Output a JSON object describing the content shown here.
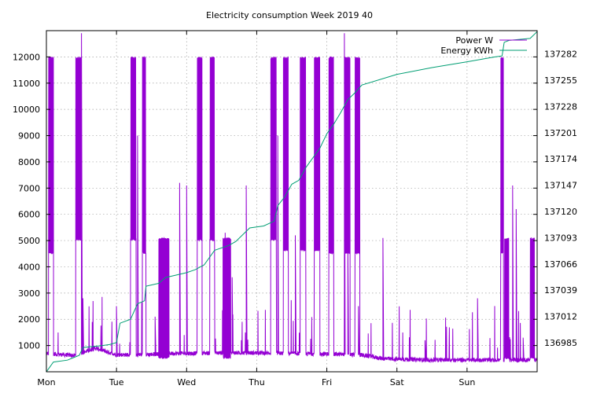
{
  "chart_data": {
    "type": "line",
    "title": "Electricity consumption Week 2019 40",
    "xlabel": "",
    "ylabel": "",
    "y2label": "",
    "x_ticks": [
      "Mon",
      "Tue",
      "Wed",
      "Thu",
      "Fri",
      "Sat",
      "Sun"
    ],
    "x_range_days": [
      0,
      7
    ],
    "ylim": [
      0,
      13000
    ],
    "y_ticks": [
      1000,
      2000,
      3000,
      4000,
      5000,
      6000,
      7000,
      8000,
      9000,
      10000,
      11000,
      12000
    ],
    "y2lim": [
      136955,
      137306
    ],
    "y2_ticks": [
      136985,
      137012,
      137039,
      137066,
      137093,
      137120,
      137147,
      137174,
      137201,
      137228,
      137255,
      137282
    ],
    "grid": true,
    "legend_position": "top-right",
    "colors": {
      "power": "#9400d3",
      "energy": "#009e73",
      "grid": "#a0a0a0"
    },
    "series": [
      {
        "name": "Power W",
        "axis": "y",
        "style": "spiky",
        "base_level": [
          [
            0.0,
            700
          ],
          [
            0.4,
            620
          ],
          [
            0.7,
            900
          ],
          [
            1.0,
            650
          ],
          [
            1.4,
            650
          ],
          [
            1.7,
            700
          ],
          [
            2.0,
            700
          ],
          [
            2.5,
            720
          ],
          [
            3.0,
            720
          ],
          [
            3.5,
            700
          ],
          [
            4.0,
            680
          ],
          [
            4.5,
            640
          ],
          [
            4.8,
            500
          ],
          [
            5.0,
            480
          ],
          [
            5.5,
            450
          ],
          [
            6.0,
            450
          ],
          [
            6.4,
            450
          ],
          [
            6.9,
            450
          ],
          [
            7.0,
            450
          ]
        ],
        "high_blocks": [
          [
            0.03,
            0.1,
            4500,
            12000
          ],
          [
            0.42,
            0.5,
            5000,
            12000
          ],
          [
            1.2,
            1.28,
            5000,
            12000
          ],
          [
            1.37,
            1.42,
            4500,
            12000
          ],
          [
            1.6,
            1.75,
            500,
            5100
          ],
          [
            2.15,
            2.22,
            5000,
            12000
          ],
          [
            2.33,
            2.4,
            5000,
            12000
          ],
          [
            2.52,
            2.63,
            500,
            5100
          ],
          [
            3.2,
            3.28,
            5000,
            12000
          ],
          [
            3.38,
            3.45,
            4600,
            12000
          ],
          [
            3.62,
            3.7,
            4600,
            12000
          ],
          [
            3.82,
            3.9,
            4600,
            12000
          ],
          [
            4.03,
            4.1,
            4500,
            12000
          ],
          [
            4.25,
            4.33,
            4500,
            12000
          ],
          [
            4.4,
            4.47,
            4500,
            12000
          ],
          [
            6.48,
            6.52,
            4500,
            12000
          ],
          [
            6.53,
            6.6,
            500,
            5100
          ],
          [
            6.9,
            6.96,
            500,
            5100
          ]
        ],
        "peaks": [
          [
            0.5,
            12900
          ],
          [
            4.25,
            12900
          ],
          [
            0.52,
            2800
          ],
          [
            1.0,
            2500
          ],
          [
            1.3,
            9000
          ],
          [
            1.55,
            2100
          ],
          [
            1.9,
            7200
          ],
          [
            2.0,
            7100
          ],
          [
            2.55,
            5300
          ],
          [
            2.65,
            3600
          ],
          [
            2.85,
            7100
          ],
          [
            3.3,
            9000
          ],
          [
            3.55,
            5200
          ],
          [
            4.3,
            5000
          ],
          [
            4.45,
            2500
          ],
          [
            4.8,
            5100
          ],
          [
            5.4,
            1200
          ],
          [
            5.7,
            700
          ],
          [
            6.15,
            2800
          ],
          [
            6.65,
            7100
          ],
          [
            6.7,
            6200
          ],
          [
            6.8,
            1300
          ],
          [
            7.0,
            12000
          ]
        ]
      },
      {
        "name": "Energy KWh",
        "axis": "y2",
        "points": [
          [
            0.0,
            136955
          ],
          [
            0.1,
            136965
          ],
          [
            0.3,
            136967
          ],
          [
            0.4,
            136970
          ],
          [
            0.47,
            136972
          ],
          [
            0.52,
            136980
          ],
          [
            0.8,
            136982
          ],
          [
            0.9,
            136983
          ],
          [
            1.0,
            136985
          ],
          [
            1.05,
            137005
          ],
          [
            1.2,
            137009
          ],
          [
            1.3,
            137025
          ],
          [
            1.4,
            137028
          ],
          [
            1.42,
            137043
          ],
          [
            1.6,
            137046
          ],
          [
            1.7,
            137052
          ],
          [
            2.0,
            137057
          ],
          [
            2.12,
            137060
          ],
          [
            2.25,
            137065
          ],
          [
            2.35,
            137075
          ],
          [
            2.4,
            137080
          ],
          [
            2.6,
            137085
          ],
          [
            2.7,
            137089
          ],
          [
            2.9,
            137103
          ],
          [
            3.1,
            137105
          ],
          [
            3.25,
            137110
          ],
          [
            3.3,
            137126
          ],
          [
            3.4,
            137135
          ],
          [
            3.5,
            137148
          ],
          [
            3.6,
            137152
          ],
          [
            3.7,
            137165
          ],
          [
            3.8,
            137175
          ],
          [
            3.9,
            137185
          ],
          [
            4.0,
            137200
          ],
          [
            4.1,
            137210
          ],
          [
            4.2,
            137222
          ],
          [
            4.3,
            137235
          ],
          [
            4.4,
            137242
          ],
          [
            4.5,
            137250
          ],
          [
            5.0,
            137261
          ],
          [
            5.5,
            137268
          ],
          [
            6.0,
            137274
          ],
          [
            6.4,
            137279
          ],
          [
            6.5,
            137280
          ],
          [
            6.53,
            137294
          ],
          [
            6.6,
            137296
          ],
          [
            6.9,
            137298
          ],
          [
            7.0,
            137305
          ]
        ]
      }
    ]
  }
}
